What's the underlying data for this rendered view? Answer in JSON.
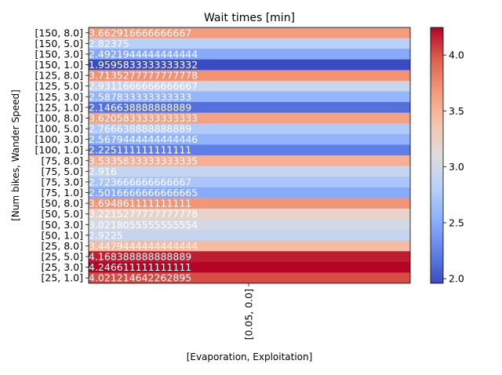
{
  "chart_data": {
    "type": "heatmap",
    "title": "Wait times [min]",
    "xlabel": "[Evaporation, Exploitation]",
    "ylabel": "[Num bikes, Wander Speed]",
    "x_categories": [
      "[0.05, 0.0]"
    ],
    "y_categories": [
      "[150, 8.0]",
      "[150, 5.0]",
      "[150, 3.0]",
      "[150, 1.0]",
      "[125, 8.0]",
      "[125, 5.0]",
      "[125, 3.0]",
      "[125, 1.0]",
      "[100, 8.0]",
      "[100, 5.0]",
      "[100, 3.0]",
      "[100, 1.0]",
      "[75, 8.0]",
      "[75, 5.0]",
      "[75, 3.0]",
      "[75, 1.0]",
      "[50, 8.0]",
      "[50, 5.0]",
      "[50, 3.0]",
      "[50, 1.0]",
      "[25, 8.0]",
      "[25, 5.0]",
      "[25, 3.0]",
      "[25, 1.0]"
    ],
    "values": [
      3.662916666666667,
      2.82375,
      2.4921944444444444,
      1.9595833333333332,
      3.7135277777777778,
      2.931166666666667,
      2.587833333333333,
      2.146638888888889,
      3.6205833333333333,
      2.766638888888889,
      2.5679444444444446,
      2.225111111111111,
      3.5335833333333335,
      2.916,
      2.723666666666667,
      2.5016666666666665,
      3.694861111111111,
      3.2215277777777778,
      3.0218055555555554,
      2.9225,
      3.4479444444444445,
      4.168388888888889,
      4.246611111111111,
      4.021214642262895
    ],
    "value_labels": [
      "3.662916666666667",
      "2.82375",
      "2.4921944444444444",
      "1.9595833333333332",
      "3.7135277777777778",
      "2.9311666666666667",
      "2.587833333333333",
      "2.146638888888889",
      "3.6205833333333333",
      "2.766638888888889",
      "2.5679444444444446",
      "2.225111111111111",
      "3.5335833333333335",
      "2.916",
      "2.723666666666667",
      "2.5016666666666665",
      "3.694861111111111",
      "3.2215277777777778",
      "3.0218055555555554",
      "2.9225",
      "3.4479444444444444",
      "4.168388888888889",
      "4.246611111111111",
      "4.021214642262895"
    ],
    "colormap": "coolwarm",
    "colorbar": {
      "vmin": 1.9595833333333332,
      "vmax": 4.246611111111111,
      "ticks": [
        2.0,
        2.5,
        3.0,
        3.5,
        4.0
      ],
      "tick_labels": [
        "2.0",
        "2.5",
        "3.0",
        "3.5",
        "4.0"
      ]
    }
  }
}
